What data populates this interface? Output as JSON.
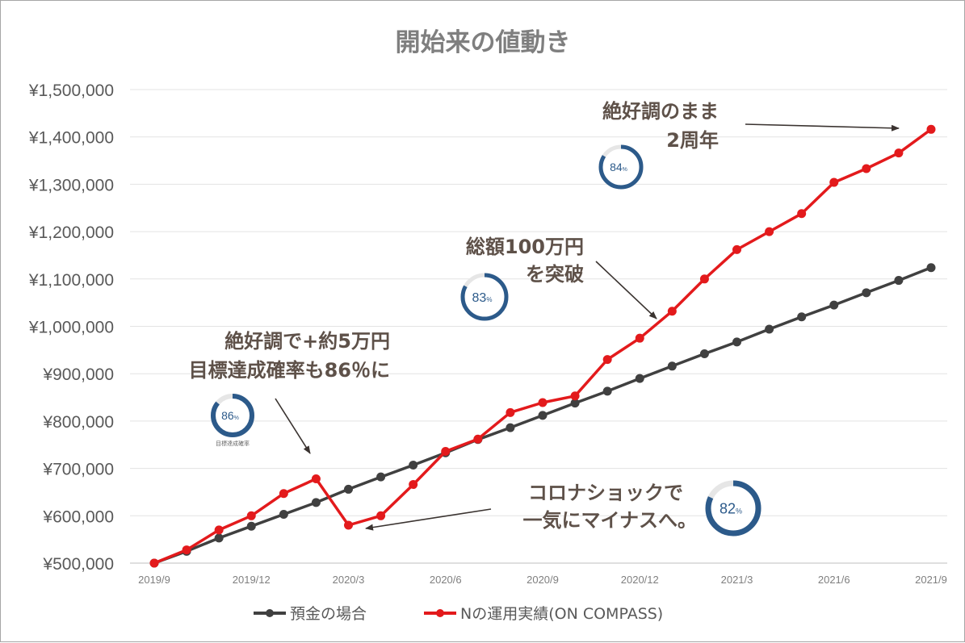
{
  "chart_data": {
    "type": "line",
    "title": "開始来の値動き",
    "xlabel": "",
    "ylabel": "",
    "ylim": [
      500000,
      1500000
    ],
    "yticks": [
      "¥500,000",
      "¥600,000",
      "¥700,000",
      "¥800,000",
      "¥900,000",
      "¥1,000,000",
      "¥1,100,000",
      "¥1,200,000",
      "¥1,300,000",
      "¥1,400,000",
      "¥1,500,000"
    ],
    "x": [
      "2019/9",
      "2019/10",
      "2019/11",
      "2019/12",
      "2020/1",
      "2020/2",
      "2020/3",
      "2020/4",
      "2020/5",
      "2020/6",
      "2020/7",
      "2020/8",
      "2020/9",
      "2020/10",
      "2020/11",
      "2020/12",
      "2021/1",
      "2021/2",
      "2021/3",
      "2021/4",
      "2021/5",
      "2021/6",
      "2021/7",
      "2021/8",
      "2021/9"
    ],
    "xticklabels": [
      "2019/9",
      "2019/12",
      "2020/3",
      "2020/6",
      "2020/9",
      "2020/12",
      "2021/3",
      "2021/6",
      "2021/9"
    ],
    "grid": true,
    "legend_position": "bottom",
    "series": [
      {
        "name": "預金の場合",
        "color": "#404040",
        "values": [
          500000,
          525000,
          553000,
          578000,
          603000,
          628000,
          656000,
          682000,
          707000,
          733000,
          761000,
          786000,
          812000,
          838000,
          863000,
          890000,
          916000,
          942000,
          967000,
          994000,
          1020000,
          1045000,
          1071000,
          1097000,
          1124000
        ]
      },
      {
        "name": "Nの運用実績(ON COMPASS)",
        "color": "#e31a1c",
        "values": [
          500000,
          528000,
          570000,
          600000,
          647000,
          678000,
          580000,
          600000,
          666000,
          736000,
          762000,
          818000,
          839000,
          853000,
          930000,
          975000,
          1032000,
          1100000,
          1162000,
          1200000,
          1238000,
          1304000,
          1333000,
          1366000,
          1416000
        ]
      }
    ],
    "annotations": [
      {
        "lines": [
          "絶好調で+約5万円",
          "目標達成確率も86％に"
        ]
      },
      {
        "lines": [
          "コロナショックで",
          "一気にマイナスへ。"
        ]
      },
      {
        "lines": [
          "総額100万円",
          "を突破"
        ]
      },
      {
        "lines": [
          "絶好調のまま",
          "2周年"
        ]
      }
    ],
    "gauges": [
      {
        "value": 86,
        "unit": "%",
        "caption": "目標達成確率"
      },
      {
        "value": 83,
        "unit": "%"
      },
      {
        "value": 84,
        "unit": "%"
      },
      {
        "value": 82,
        "unit": "%"
      }
    ]
  }
}
